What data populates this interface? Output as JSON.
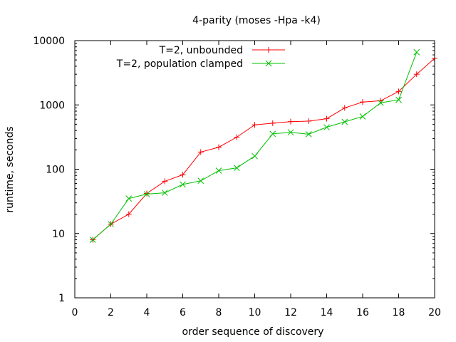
{
  "chart_data": {
    "type": "line",
    "title": "4-parity (moses -Hpa -k4)",
    "xlabel": "order sequence of discovery",
    "ylabel": "runtime, seconds",
    "xlim": [
      0,
      20
    ],
    "ylim": [
      1,
      10000
    ],
    "yscale": "log",
    "xticks": [
      0,
      2,
      4,
      6,
      8,
      10,
      12,
      14,
      16,
      18,
      20
    ],
    "yticks": [
      1,
      10,
      100,
      1000,
      10000
    ],
    "xtick_labels": [
      "0",
      "2",
      "4",
      "6",
      "8",
      "10",
      "12",
      "14",
      "16",
      "18",
      "20"
    ],
    "ytick_labels": [
      "1",
      "10",
      "100",
      "1000",
      "10000"
    ],
    "legend_position": "top-right",
    "series": [
      {
        "name": "T=2, unbounded",
        "color": "#ff0000",
        "marker": "plus",
        "x": [
          1,
          2,
          3,
          4,
          5,
          6,
          7,
          8,
          9,
          10,
          11,
          12,
          13,
          14,
          15,
          16,
          17,
          18,
          19,
          20
        ],
        "values": [
          8,
          14,
          20,
          42,
          65,
          82,
          185,
          220,
          315,
          490,
          520,
          550,
          560,
          610,
          900,
          1110,
          1160,
          1620,
          3000,
          5300
        ]
      },
      {
        "name": "T=2, population clamped",
        "color": "#00c000",
        "marker": "x",
        "x": [
          1,
          2,
          3,
          4,
          5,
          6,
          7,
          8,
          9,
          10,
          11,
          12,
          13,
          14,
          15,
          16,
          17,
          18,
          19
        ],
        "values": [
          8,
          14,
          35,
          41,
          43,
          58,
          66,
          95,
          105,
          160,
          355,
          375,
          350,
          450,
          545,
          660,
          1080,
          1200,
          6600
        ]
      }
    ]
  }
}
